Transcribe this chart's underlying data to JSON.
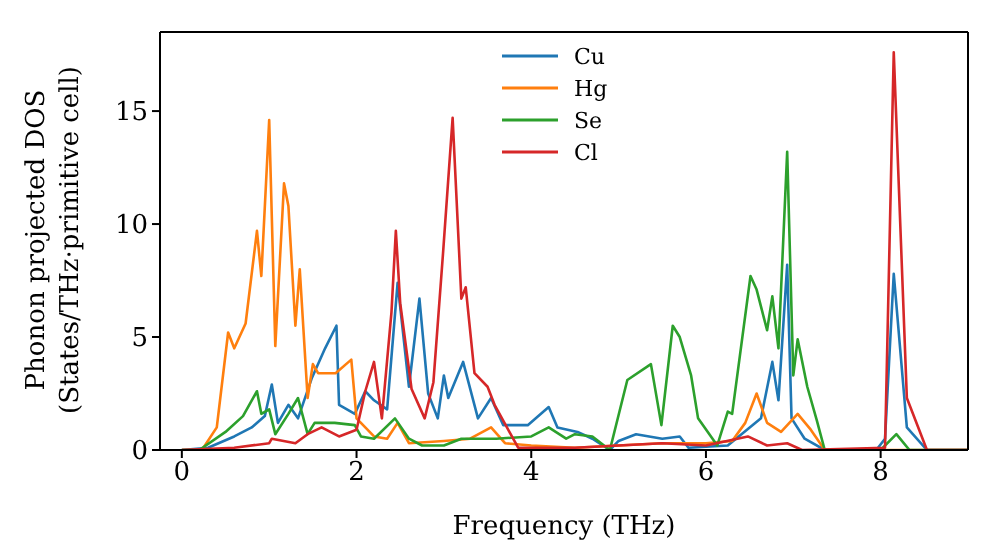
{
  "chart_data": {
    "type": "line",
    "xlabel": "Frequency (THz)",
    "ylabel": "Phonon projected DOS\n(States/THz·primitive cell)",
    "xlim": [
      -0.25,
      9.0
    ],
    "ylim": [
      0,
      18.5
    ],
    "xticks": [
      0,
      2,
      4,
      6,
      8
    ],
    "yticks": [
      0,
      5,
      10,
      15
    ],
    "legend": "top",
    "marker": "none",
    "line_style": "solid",
    "series": [
      {
        "name": "Cu",
        "color": "#1f77b4",
        "x": [
          0,
          0.3,
          0.6,
          0.8,
          0.95,
          1.03,
          1.1,
          1.22,
          1.33,
          1.49,
          1.64,
          1.77,
          1.8,
          1.98,
          2.1,
          2.2,
          2.35,
          2.47,
          2.6,
          2.72,
          2.82,
          2.93,
          3.0,
          3.05,
          3.22,
          3.39,
          3.54,
          3.68,
          3.96,
          4.2,
          4.3,
          4.53,
          4.7,
          4.9,
          5.0,
          5.2,
          5.5,
          5.7,
          5.8,
          6.25,
          6.63,
          6.76,
          6.83,
          6.93,
          6.98,
          7.13,
          7.36,
          7.95,
          8.05,
          8.15,
          8.3,
          8.53,
          9.0
        ],
        "values": [
          0,
          0.1,
          0.6,
          1.0,
          1.5,
          2.9,
          1.2,
          2.0,
          1.4,
          3.2,
          4.5,
          5.5,
          2.0,
          1.6,
          2.6,
          2.2,
          1.8,
          7.4,
          2.8,
          6.7,
          2.5,
          1.4,
          3.3,
          2.3,
          3.9,
          1.4,
          2.3,
          1.1,
          1.1,
          1.9,
          1.0,
          0.8,
          0.5,
          0.0,
          0.4,
          0.7,
          0.5,
          0.6,
          0.1,
          0.2,
          1.4,
          3.9,
          2.2,
          8.2,
          1.4,
          0.5,
          0,
          0,
          0.5,
          7.8,
          1.0,
          0,
          0
        ]
      },
      {
        "name": "Hg",
        "color": "#ff7f0e",
        "x": [
          0,
          0.23,
          0.4,
          0.53,
          0.6,
          0.73,
          0.86,
          0.91,
          1.0,
          1.07,
          1.17,
          1.22,
          1.3,
          1.35,
          1.44,
          1.5,
          1.56,
          1.76,
          1.94,
          2.0,
          2.2,
          2.35,
          2.47,
          2.6,
          3.0,
          3.3,
          3.54,
          3.7,
          4.0,
          4.5,
          5.0,
          5.5,
          6.0,
          6.3,
          6.45,
          6.58,
          6.7,
          6.86,
          7.05,
          7.2,
          7.36,
          9.0
        ],
        "values": [
          0,
          0,
          1.0,
          5.2,
          4.5,
          5.6,
          9.7,
          7.7,
          14.6,
          4.6,
          11.8,
          10.8,
          5.5,
          8.0,
          2.3,
          3.8,
          3.4,
          3.4,
          4.0,
          1.4,
          0.6,
          0.5,
          1.2,
          0.3,
          0.4,
          0.5,
          1.0,
          0.3,
          0.2,
          0.1,
          0.2,
          0.3,
          0.3,
          0.4,
          1.2,
          2.5,
          1.2,
          0.8,
          1.6,
          0.9,
          0,
          0
        ]
      },
      {
        "name": "Se",
        "color": "#2ca02c",
        "x": [
          0,
          0.2,
          0.5,
          0.7,
          0.86,
          0.91,
          1.0,
          1.07,
          1.22,
          1.33,
          1.44,
          1.52,
          1.75,
          1.98,
          2.05,
          2.2,
          2.44,
          2.6,
          2.75,
          3.0,
          3.2,
          3.6,
          4.0,
          4.2,
          4.4,
          4.5,
          4.7,
          4.9,
          5.1,
          5.37,
          5.49,
          5.62,
          5.7,
          5.83,
          5.91,
          6.13,
          6.25,
          6.3,
          6.51,
          6.58,
          6.7,
          6.76,
          6.83,
          6.93,
          7.0,
          7.05,
          7.16,
          7.27,
          7.36,
          8.0,
          8.18,
          8.33,
          9.0
        ],
        "values": [
          0,
          0,
          0.8,
          1.5,
          2.6,
          1.6,
          1.8,
          0.7,
          1.6,
          2.3,
          0.7,
          1.2,
          1.2,
          1.1,
          0.6,
          0.5,
          1.4,
          0.5,
          0.2,
          0.2,
          0.5,
          0.5,
          0.6,
          1.0,
          0.5,
          0.7,
          0.6,
          0.0,
          3.1,
          3.8,
          1.1,
          5.5,
          5.0,
          3.3,
          1.4,
          0.2,
          1.7,
          1.6,
          7.7,
          7.1,
          5.3,
          6.8,
          4.5,
          13.2,
          3.3,
          4.9,
          2.8,
          1.3,
          0,
          0,
          0.7,
          0,
          0
        ]
      },
      {
        "name": "Cl",
        "color": "#d62728",
        "x": [
          0,
          0.6,
          1.0,
          1.03,
          1.3,
          1.44,
          1.6,
          1.8,
          2.0,
          2.1,
          2.2,
          2.29,
          2.4,
          2.45,
          2.5,
          2.63,
          2.78,
          2.88,
          2.99,
          3.1,
          3.2,
          3.25,
          3.35,
          3.5,
          3.58,
          3.75,
          3.85,
          4.5,
          5.0,
          5.5,
          6.0,
          6.48,
          6.7,
          6.93,
          7.1,
          8.05,
          8.15,
          8.3,
          8.53,
          9.0
        ],
        "values": [
          0,
          0.1,
          0.3,
          0.5,
          0.3,
          0.7,
          1.0,
          0.6,
          0.9,
          2.6,
          3.9,
          1.4,
          6.1,
          9.7,
          6.5,
          2.7,
          1.4,
          3.0,
          8.7,
          14.7,
          6.7,
          7.2,
          3.4,
          2.8,
          2.0,
          0.8,
          0.1,
          0.1,
          0.2,
          0.3,
          0.2,
          0.6,
          0.2,
          0.3,
          0,
          0.1,
          17.6,
          2.3,
          0,
          0
        ]
      }
    ]
  }
}
